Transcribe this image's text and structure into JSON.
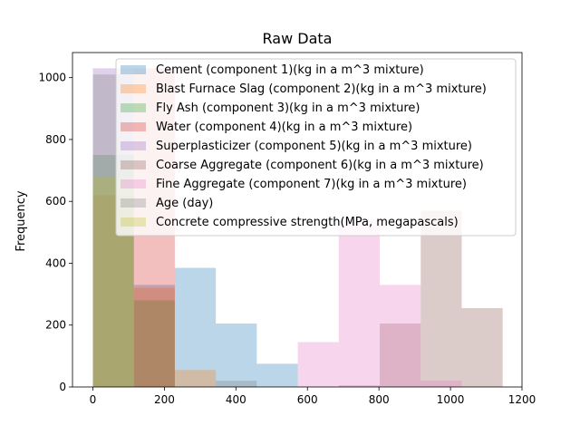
{
  "chart_data": {
    "type": "bar",
    "title": "Raw Data",
    "xlabel": "",
    "ylabel": "Frequency",
    "xlim": [
      -57,
      1200
    ],
    "ylim": [
      0,
      1081
    ],
    "xticks": [
      0,
      200,
      400,
      600,
      800,
      1000,
      1200
    ],
    "yticks": [
      0,
      200,
      400,
      600,
      800,
      1000
    ],
    "bin_edges": [
      0,
      114.6,
      229.2,
      343.8,
      458.4,
      573.0,
      687.6,
      802.2,
      916.8,
      1031.4,
      1146.0
    ],
    "legend_position": "upper right",
    "alpha": 0.3,
    "series": [
      {
        "name": "Cement (component 1)(kg in a m^3 mixture)",
        "color": "#1f77b4",
        "values": [
          0,
          330,
          385,
          205,
          75,
          0,
          0,
          0,
          0,
          0
        ]
      },
      {
        "name": "Blast Furnace Slag (component 2)(kg in a m^3 mixture)",
        "color": "#ff7f0e",
        "values": [
          620,
          320,
          55,
          0,
          0,
          0,
          0,
          0,
          0,
          0
        ]
      },
      {
        "name": "Fly Ash (component 3)(kg in a m^3 mixture)",
        "color": "#2ca02c",
        "values": [
          750,
          280,
          0,
          0,
          0,
          0,
          0,
          0,
          0,
          0
        ]
      },
      {
        "name": "Water  (component 4)(kg in a m^3 mixture)",
        "color": "#d62728",
        "values": [
          0,
          1030,
          0,
          0,
          0,
          0,
          0,
          0,
          0,
          0
        ]
      },
      {
        "name": "Superplasticizer (component 5)(kg in a m^3 mixture)",
        "color": "#9467bd",
        "values": [
          1030,
          0,
          0,
          0,
          0,
          0,
          0,
          0,
          0,
          0
        ]
      },
      {
        "name": "Coarse Aggregate  (component 6)(kg in a m^3 mixture)",
        "color": "#8c564b",
        "values": [
          0,
          0,
          0,
          0,
          0,
          0,
          5,
          205,
          570,
          255
        ]
      },
      {
        "name": "Fine Aggregate  (component 7)(kg in a m^3 mixture)",
        "color": "#e377c2",
        "values": [
          0,
          0,
          0,
          0,
          0,
          145,
          540,
          330,
          20,
          0
        ]
      },
      {
        "name": "Age (day)",
        "color": "#7f7f7f",
        "values": [
          1010,
          0,
          0,
          20,
          0,
          0,
          0,
          0,
          0,
          0
        ]
      },
      {
        "name": "Concrete compressive strength(MPa, megapascals)",
        "color": "#bcbd22",
        "values": [
          680,
          0,
          0,
          0,
          0,
          0,
          0,
          0,
          0,
          0
        ]
      }
    ]
  }
}
